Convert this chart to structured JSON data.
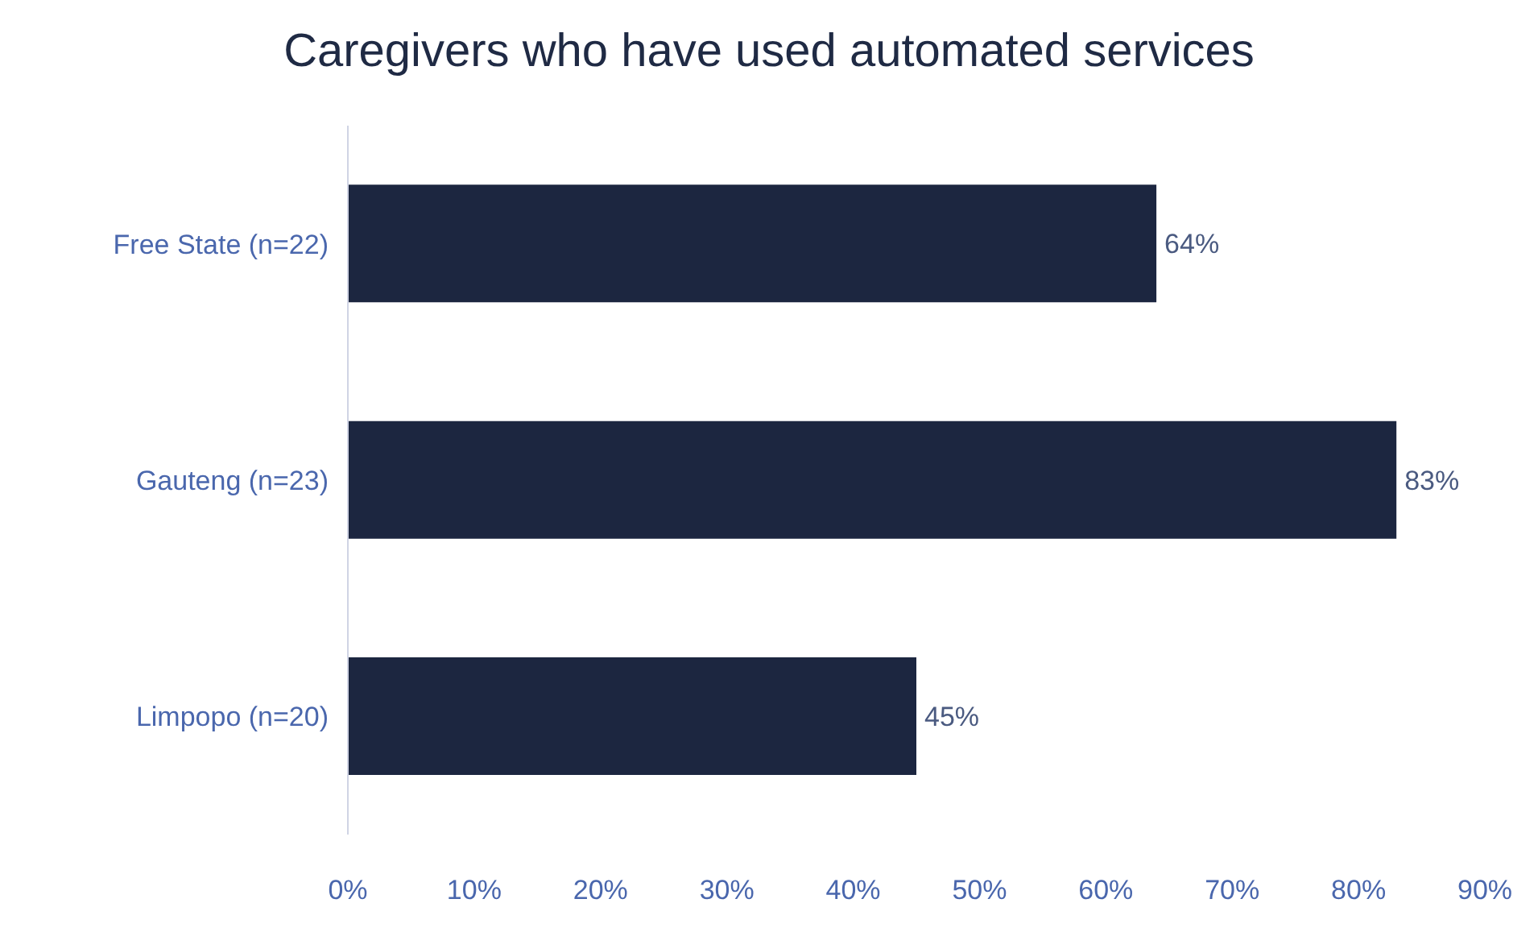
{
  "chart_data": {
    "type": "bar",
    "orientation": "horizontal",
    "title": "Caregivers who have used automated services",
    "categories": [
      "Free State (n=22)",
      "Gauteng (n=23)",
      "Limpopo (n=20)"
    ],
    "values": [
      64,
      83,
      45
    ],
    "color": "#1c2640",
    "value_labels": [
      "64%",
      "83%",
      "45%"
    ],
    "xlim": [
      0,
      90
    ],
    "xticks": [
      {
        "value": 0,
        "label": "0%"
      },
      {
        "value": 10,
        "label": "10%"
      },
      {
        "value": 20,
        "label": "20%"
      },
      {
        "value": 30,
        "label": "30%"
      },
      {
        "value": 40,
        "label": "40%"
      },
      {
        "value": 50,
        "label": "50%"
      },
      {
        "value": 60,
        "label": "60%"
      },
      {
        "value": 70,
        "label": "70%"
      },
      {
        "value": 80,
        "label": "80%"
      },
      {
        "value": 90,
        "label": "90%"
      }
    ],
    "grid": false,
    "legend": false
  }
}
